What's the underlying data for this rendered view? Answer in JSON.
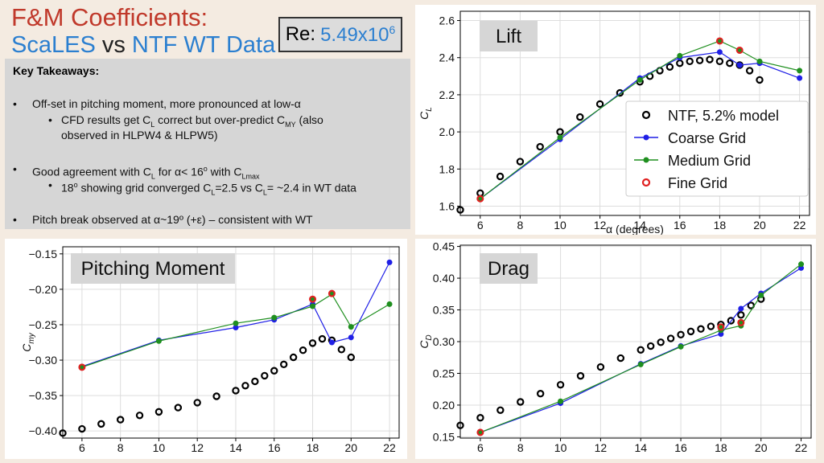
{
  "header": {
    "title_line1": "F&M Coefficients:",
    "title_scales": "ScaLES",
    "title_vs": " vs ",
    "title_ntf": "NTF WT Data",
    "re_label": "Re:",
    "re_base": "5.49x10",
    "re_exp": "6"
  },
  "takeaways": {
    "heading": "Key Takeaways:",
    "b1": "Off-set in pitching moment, more pronounced at low-α",
    "b1a_1": "CFD results get C",
    "b1a_sub1": "L",
    "b1a_2": " correct but over-predict C",
    "b1a_sub2": "MY",
    "b1a_3": " (also",
    "b1a_line2": "observed in HLPW4 & HLPW5)",
    "b2_1": "Good agreement with C",
    "b2_sub1": "L",
    "b2_2": " for α< 16",
    "b2_sup": "o",
    "b2_3": " with C",
    "b2_sub2": "Lmax",
    "b2a_1": "18",
    "b2a_sup": "o",
    "b2a_2": " showing grid converged C",
    "b2a_sub1": "L",
    "b2a_3": "=2.5 vs C",
    "b2a_sub2": "L",
    "b2a_4": "= ~2.4 in WT data",
    "b3": "Pitch break observed at α~19º (+ε) – consistent with WT"
  },
  "chart_data": [
    {
      "type": "line",
      "title": "Lift",
      "xlabel": "α (degrees)",
      "ylabel": "C_L",
      "xlim": [
        5,
        22.5
      ],
      "ylim": [
        1.55,
        2.65
      ],
      "xticks": [
        6,
        8,
        10,
        12,
        14,
        16,
        18,
        20,
        22
      ],
      "yticks": [
        1.6,
        1.8,
        2.0,
        2.2,
        2.4,
        2.6
      ],
      "ytick_labels": [
        "1.6",
        "1.8",
        "2.0",
        "2.2",
        "2.4",
        "2.6"
      ],
      "legend": "center-right",
      "series": [
        {
          "name": "NTF, 5.2% model",
          "style": "open-circle",
          "color": "#000000",
          "x": [
            5,
            6,
            7,
            8,
            9,
            10,
            11,
            12,
            13,
            14,
            14.5,
            15,
            15.5,
            16,
            16.5,
            17,
            17.5,
            18,
            18.5,
            19,
            19.5,
            20
          ],
          "y": [
            1.58,
            1.67,
            1.76,
            1.84,
            1.92,
            2.0,
            2.08,
            2.15,
            2.21,
            2.27,
            2.3,
            2.33,
            2.35,
            2.37,
            2.38,
            2.385,
            2.39,
            2.38,
            2.37,
            2.36,
            2.33,
            2.28
          ]
        },
        {
          "name": "Coarse Grid",
          "style": "line-dot",
          "color": "#1f1fe6",
          "x": [
            6,
            10,
            14,
            16,
            18,
            19,
            20,
            22
          ],
          "y": [
            1.64,
            1.96,
            2.29,
            2.4,
            2.43,
            2.36,
            2.37,
            2.29
          ]
        },
        {
          "name": "Medium Grid",
          "style": "line-dot",
          "color": "#1f8f1f",
          "x": [
            6,
            10,
            14,
            16,
            18,
            19,
            20,
            22
          ],
          "y": [
            1.64,
            1.97,
            2.28,
            2.41,
            2.49,
            2.44,
            2.38,
            2.33
          ]
        },
        {
          "name": "Fine Grid",
          "style": "red-dot",
          "color": "#e02020",
          "x": [
            6,
            18,
            19
          ],
          "y": [
            1.64,
            2.49,
            2.44
          ]
        }
      ]
    },
    {
      "type": "line",
      "title": "Pitching Moment",
      "xlabel": "",
      "ylabel": "C_my",
      "xlim": [
        5,
        22.5
      ],
      "ylim": [
        -0.41,
        -0.14
      ],
      "xticks": [
        6,
        8,
        10,
        12,
        14,
        16,
        18,
        20,
        22
      ],
      "yticks": [
        -0.4,
        -0.35,
        -0.3,
        -0.25,
        -0.2,
        -0.15
      ],
      "ytick_labels": [
        "−0.40",
        "−0.35",
        "−0.30",
        "−0.25",
        "−0.20",
        "−0.15"
      ],
      "series": [
        {
          "name": "NTF, 5.2% model",
          "style": "open-circle",
          "color": "#000000",
          "x": [
            5,
            6,
            7,
            8,
            9,
            10,
            11,
            12,
            13,
            14,
            14.5,
            15,
            15.5,
            16,
            16.5,
            17,
            17.5,
            18,
            18.5,
            19,
            19.5,
            20
          ],
          "y": [
            -0.403,
            -0.397,
            -0.39,
            -0.384,
            -0.378,
            -0.373,
            -0.367,
            -0.36,
            -0.351,
            -0.343,
            -0.336,
            -0.33,
            -0.322,
            -0.315,
            -0.306,
            -0.296,
            -0.286,
            -0.276,
            -0.27,
            -0.272,
            -0.285,
            -0.296
          ]
        },
        {
          "name": "Coarse Grid",
          "style": "line-dot",
          "color": "#1f1fe6",
          "x": [
            6,
            10,
            14,
            16,
            18,
            19,
            20,
            22
          ],
          "y": [
            -0.309,
            -0.272,
            -0.254,
            -0.243,
            -0.221,
            -0.275,
            -0.268,
            -0.162
          ]
        },
        {
          "name": "Medium Grid",
          "style": "line-dot",
          "color": "#1f8f1f",
          "x": [
            6,
            10,
            14,
            16,
            18,
            19,
            20,
            22
          ],
          "y": [
            -0.31,
            -0.273,
            -0.248,
            -0.24,
            -0.224,
            -0.207,
            -0.253,
            -0.221
          ]
        },
        {
          "name": "Fine Grid",
          "style": "red-dot",
          "color": "#e02020",
          "x": [
            6,
            18,
            19
          ],
          "y": [
            -0.31,
            -0.214,
            -0.206
          ]
        }
      ]
    },
    {
      "type": "line",
      "title": "Drag",
      "xlabel": "",
      "ylabel": "C_D",
      "xlim": [
        5,
        22.5
      ],
      "ylim": [
        0.148,
        0.452
      ],
      "xticks": [
        6,
        8,
        10,
        12,
        14,
        16,
        18,
        20,
        22
      ],
      "yticks": [
        0.15,
        0.2,
        0.25,
        0.3,
        0.35,
        0.4,
        0.45
      ],
      "ytick_labels": [
        "0.15",
        "0.20",
        "0.25",
        "0.30",
        "0.35",
        "0.40",
        "0.45"
      ],
      "series": [
        {
          "name": "NTF, 5.2% model",
          "style": "open-circle",
          "color": "#000000",
          "x": [
            5,
            6,
            7,
            8,
            9,
            10,
            11,
            12,
            13,
            14,
            14.5,
            15,
            15.5,
            16,
            16.5,
            17,
            17.5,
            18,
            18.5,
            19,
            19.5,
            20
          ],
          "y": [
            0.168,
            0.18,
            0.192,
            0.205,
            0.218,
            0.232,
            0.246,
            0.26,
            0.274,
            0.287,
            0.293,
            0.299,
            0.305,
            0.311,
            0.316,
            0.32,
            0.324,
            0.327,
            0.333,
            0.342,
            0.357,
            0.367
          ]
        },
        {
          "name": "Coarse Grid",
          "style": "line-dot",
          "color": "#1f1fe6",
          "x": [
            6,
            10,
            14,
            16,
            18,
            19,
            20,
            22
          ],
          "y": [
            0.157,
            0.203,
            0.265,
            0.293,
            0.312,
            0.352,
            0.376,
            0.416
          ]
        },
        {
          "name": "Medium Grid",
          "style": "line-dot",
          "color": "#1f8f1f",
          "x": [
            6,
            10,
            14,
            16,
            18,
            19,
            20,
            22
          ],
          "y": [
            0.157,
            0.206,
            0.264,
            0.292,
            0.318,
            0.325,
            0.373,
            0.422
          ]
        },
        {
          "name": "Fine Grid",
          "style": "red-dot",
          "color": "#e02020",
          "x": [
            6,
            18,
            19
          ],
          "y": [
            0.157,
            0.323,
            0.33
          ]
        }
      ]
    }
  ]
}
